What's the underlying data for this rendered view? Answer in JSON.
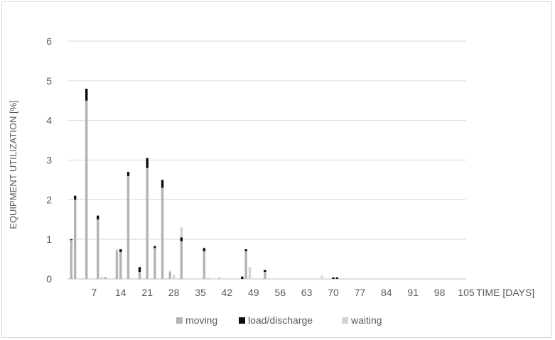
{
  "chart_data": {
    "type": "bar",
    "stacked": true,
    "ylabel": "EQUIPMENT UTILIZATION [%]",
    "xlabel": "TIME [DAYS]",
    "ylim": [
      0,
      6
    ],
    "yticks": [
      "0",
      "1",
      "2",
      "3",
      "4",
      "5",
      "6"
    ],
    "xlim": [
      0,
      105
    ],
    "xticks": [
      "7",
      "14",
      "21",
      "28",
      "35",
      "42",
      "49",
      "56",
      "63",
      "70",
      "77",
      "84",
      "91",
      "98",
      "105"
    ],
    "gridlines": "horizontal",
    "legend_position": "bottom",
    "colors": {
      "moving": "#b3b3b3",
      "load/discharge": "#0d0d0d",
      "waiting": "#d4d4d4"
    },
    "series": [
      {
        "name": "moving",
        "x": [
          1,
          2,
          5,
          8,
          10,
          13,
          14,
          16,
          19,
          21,
          23,
          25,
          27,
          30,
          36,
          47,
          52
        ],
        "values": [
          0.98,
          2.0,
          4.5,
          1.5,
          0.05,
          0.7,
          0.68,
          2.6,
          0.18,
          2.8,
          0.78,
          2.3,
          0.18,
          0.95,
          0.7,
          0.7,
          0.18
        ]
      },
      {
        "name": "load/discharge",
        "x": [
          1,
          2,
          5,
          8,
          14,
          16,
          19,
          21,
          23,
          25,
          30,
          36,
          46,
          47,
          52,
          70,
          71
        ],
        "values": [
          0.02,
          0.1,
          0.3,
          0.1,
          0.07,
          0.1,
          0.12,
          0.25,
          0.05,
          0.2,
          0.1,
          0.08,
          0.06,
          0.05,
          0.05,
          0.04,
          0.04
        ]
      },
      {
        "name": "waiting",
        "x": [
          9,
          13,
          27,
          28,
          30,
          37,
          40,
          48,
          67
        ],
        "values": [
          0.05,
          0.05,
          0.03,
          0.1,
          0.25,
          0.04,
          0.05,
          0.3,
          0.08
        ]
      }
    ]
  }
}
